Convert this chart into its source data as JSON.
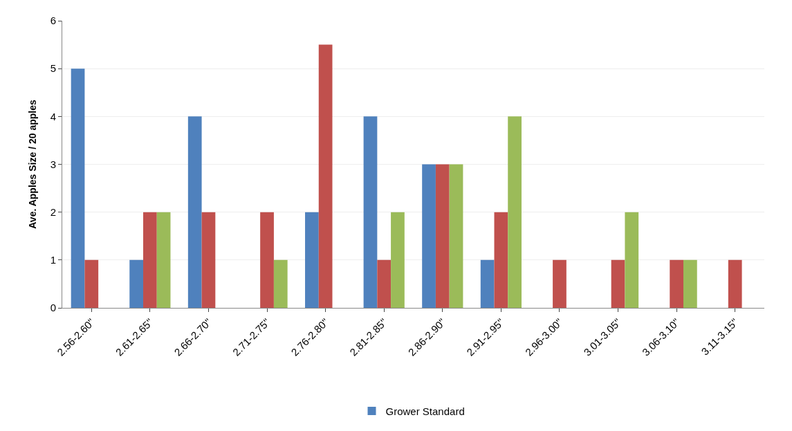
{
  "chart_data": {
    "type": "bar",
    "ylabel": "Ave. Apples Size / 20 apples",
    "categories": [
      "2.56-2.60\"",
      "2.61-2.65\"",
      "2.66-2.70\"",
      "2.71-2.75\"",
      "2.76-2.80\"",
      "2.81-2.85\"",
      "2.86-2.90\"",
      "2.91-2.95\"",
      "2.96-3.00\"",
      "3.01-3.05\"",
      "3.06-3.10\"",
      "3.11-3.15\""
    ],
    "series": [
      {
        "name": "Grower Standard",
        "color": "#4f81bd",
        "values": [
          5,
          1,
          4,
          0,
          2,
          4,
          3,
          1,
          0,
          0,
          0,
          0
        ]
      },
      {
        "color": "#c0504d",
        "values": [
          1,
          2,
          2,
          2,
          5.5,
          1,
          3,
          2,
          1,
          1,
          1,
          1
        ]
      },
      {
        "color": "#9bbb59",
        "values": [
          0,
          2,
          0,
          1,
          0,
          2,
          3,
          4,
          0,
          2,
          1,
          0
        ]
      }
    ],
    "ylim": [
      0,
      6
    ],
    "yticks": [
      0,
      1,
      2,
      3,
      4,
      5,
      6
    ],
    "grid": "y",
    "legend": "bottom"
  }
}
